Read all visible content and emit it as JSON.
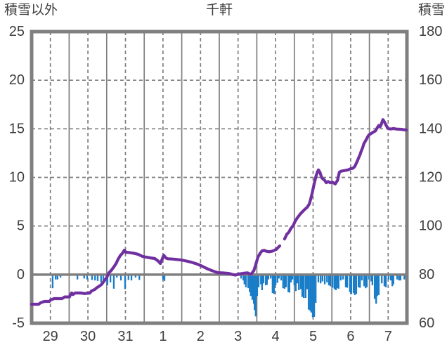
{
  "chart_data": {
    "type": "line+bar",
    "title": "千軒",
    "left_axis": {
      "label": "積雪以外",
      "min": -5,
      "max": 25,
      "ticks": [
        25,
        20,
        15,
        10,
        5,
        0,
        -5
      ]
    },
    "right_axis": {
      "label": "積雪",
      "min": 60,
      "max": 180,
      "ticks": [
        180,
        160,
        140,
        120,
        100,
        80,
        60
      ]
    },
    "x_axis": {
      "tick_labels": [
        "29",
        "30",
        "31",
        "1",
        "2",
        "3",
        "4",
        "5",
        "6",
        "7"
      ],
      "days": 10,
      "solid_gridlines": "day boundaries",
      "dashed_gridlines": "day centers"
    },
    "colors": {
      "line": "#7030A0",
      "bars": "#1A7DC8",
      "grid": "#7F7F7F",
      "frame": "#7F7F7F",
      "zero_line": "#7F7F7F",
      "text": "#3F3F3F"
    },
    "legend_position": "none",
    "grid": true,
    "note_units": "series values are in left-axis units; left 0 aligns with right 80 (right = left*4 + 80); line has a data gap near day 4.2",
    "series": [
      {
        "name": "積雪",
        "type": "line",
        "color": "#7030A0",
        "axis": "right",
        "segments": [
          [
            [
              0.0,
              -3.05
            ],
            [
              0.19,
              -3.05
            ],
            [
              0.24,
              -2.9
            ],
            [
              0.34,
              -2.76
            ],
            [
              0.47,
              -2.76
            ],
            [
              0.51,
              -2.6
            ],
            [
              0.6,
              -2.47
            ],
            [
              0.81,
              -2.47
            ],
            [
              0.88,
              -2.3
            ],
            [
              1.01,
              -2.3
            ],
            [
              1.03,
              -2.1
            ],
            [
              1.07,
              -1.89
            ],
            [
              1.1,
              -2.06
            ],
            [
              1.16,
              -1.89
            ],
            [
              1.31,
              -1.89
            ],
            [
              1.4,
              -1.95
            ],
            [
              1.55,
              -1.9
            ],
            [
              1.59,
              -1.7
            ],
            [
              1.69,
              -1.51
            ],
            [
              1.74,
              -1.34
            ],
            [
              1.82,
              -1.15
            ],
            [
              1.87,
              -0.98
            ],
            [
              1.93,
              -0.66
            ],
            [
              2.0,
              -0.3
            ],
            [
              2.06,
              0.18
            ],
            [
              2.12,
              0.42
            ],
            [
              2.19,
              0.78
            ],
            [
              2.25,
              1.14
            ],
            [
              2.3,
              1.55
            ],
            [
              2.36,
              1.95
            ],
            [
              2.42,
              2.2
            ],
            [
              2.47,
              2.51
            ],
            [
              2.51,
              2.3
            ],
            [
              2.58,
              2.28
            ],
            [
              2.72,
              2.2
            ],
            [
              2.83,
              2.1
            ],
            [
              2.96,
              1.86
            ],
            [
              3.05,
              1.8
            ],
            [
              3.16,
              1.72
            ],
            [
              3.28,
              1.65
            ],
            [
              3.37,
              1.4
            ],
            [
              3.43,
              1.14
            ],
            [
              3.48,
              1.6
            ],
            [
              3.52,
              1.99
            ],
            [
              3.58,
              1.7
            ],
            [
              3.63,
              1.63
            ],
            [
              3.75,
              1.6
            ],
            [
              3.88,
              1.55
            ],
            [
              3.99,
              1.5
            ],
            [
              4.12,
              1.4
            ],
            [
              4.25,
              1.28
            ],
            [
              4.4,
              1.1
            ],
            [
              4.55,
              0.85
            ],
            [
              4.68,
              0.6
            ],
            [
              4.81,
              0.4
            ],
            [
              4.96,
              0.2
            ],
            [
              5.11,
              0.17
            ],
            [
              5.26,
              0.12
            ],
            [
              5.36,
              0.0
            ],
            [
              5.43,
              -0.05
            ],
            [
              5.52,
              0.05
            ],
            [
              5.66,
              0.15
            ],
            [
              5.75,
              0.18
            ],
            [
              5.82,
              0.05
            ],
            [
              5.86,
              0.1
            ],
            [
              5.92,
              0.4
            ],
            [
              5.97,
              1.0
            ],
            [
              6.03,
              1.8
            ],
            [
              6.09,
              2.2
            ],
            [
              6.14,
              2.45
            ],
            [
              6.2,
              2.5
            ],
            [
              6.25,
              2.4
            ],
            [
              6.33,
              2.35
            ],
            [
              6.42,
              2.42
            ],
            [
              6.52,
              2.6
            ],
            [
              6.57,
              2.8
            ],
            [
              6.61,
              2.95
            ]
          ],
          [
            [
              6.74,
              3.67
            ],
            [
              6.8,
              4.15
            ],
            [
              6.85,
              4.35
            ],
            [
              6.91,
              4.75
            ],
            [
              6.97,
              5.05
            ],
            [
              7.02,
              5.48
            ],
            [
              7.08,
              5.84
            ],
            [
              7.15,
              6.2
            ],
            [
              7.21,
              6.44
            ],
            [
              7.27,
              6.68
            ],
            [
              7.34,
              6.92
            ],
            [
              7.4,
              7.28
            ],
            [
              7.43,
              7.7
            ],
            [
              7.47,
              8.3
            ],
            [
              7.51,
              9.0
            ],
            [
              7.55,
              9.7
            ],
            [
              7.58,
              10.18
            ],
            [
              7.62,
              10.6
            ],
            [
              7.64,
              10.77
            ],
            [
              7.68,
              10.55
            ],
            [
              7.73,
              9.95
            ],
            [
              7.81,
              9.69
            ],
            [
              7.85,
              9.45
            ],
            [
              7.9,
              9.57
            ],
            [
              7.96,
              9.45
            ],
            [
              8.01,
              9.52
            ],
            [
              8.09,
              9.33
            ],
            [
              8.15,
              9.69
            ],
            [
              8.2,
              10.54
            ],
            [
              8.26,
              10.66
            ],
            [
              8.33,
              10.7
            ],
            [
              8.43,
              10.77
            ],
            [
              8.5,
              10.9
            ],
            [
              8.56,
              10.94
            ],
            [
              8.61,
              11.13
            ],
            [
              8.67,
              11.62
            ],
            [
              8.71,
              11.98
            ],
            [
              8.75,
              12.34
            ],
            [
              8.78,
              12.7
            ],
            [
              8.82,
              13.06
            ],
            [
              8.85,
              13.45
            ],
            [
              8.9,
              13.79
            ],
            [
              8.95,
              14.15
            ],
            [
              8.99,
              14.39
            ],
            [
              9.04,
              14.5
            ],
            [
              9.1,
              14.65
            ],
            [
              9.16,
              14.78
            ],
            [
              9.21,
              15.11
            ],
            [
              9.25,
              15.35
            ],
            [
              9.29,
              15.23
            ],
            [
              9.32,
              15.5
            ],
            [
              9.36,
              15.95
            ],
            [
              9.4,
              15.71
            ],
            [
              9.44,
              15.4
            ],
            [
              9.47,
              15.2
            ],
            [
              9.51,
              15.0
            ],
            [
              9.59,
              14.99
            ],
            [
              9.64,
              15.03
            ],
            [
              9.72,
              14.97
            ],
            [
              9.83,
              14.95
            ],
            [
              9.98,
              14.87
            ]
          ]
        ]
      },
      {
        "name": "積雪以外",
        "type": "bar",
        "color": "#1A7DC8",
        "axis": "left",
        "points": [
          [
            0.56,
            -1.4
          ],
          [
            0.64,
            -0.5
          ],
          [
            0.69,
            -0.5
          ],
          [
            0.77,
            -0.3
          ],
          [
            1.22,
            -0.5
          ],
          [
            1.4,
            -0.4
          ],
          [
            1.48,
            -0.5
          ],
          [
            1.61,
            -0.55
          ],
          [
            1.69,
            -0.6
          ],
          [
            1.76,
            -0.65
          ],
          [
            1.85,
            -0.8
          ],
          [
            1.91,
            -0.85
          ],
          [
            2.02,
            -1.1
          ],
          [
            2.1,
            -0.8
          ],
          [
            2.19,
            -1.45
          ],
          [
            2.27,
            -0.3
          ],
          [
            2.38,
            -0.6
          ],
          [
            2.49,
            -1.5
          ],
          [
            2.58,
            -0.55
          ],
          [
            2.66,
            -0.6
          ],
          [
            2.77,
            -0.3
          ],
          [
            2.87,
            -0.55
          ],
          [
            3.5,
            -0.5
          ],
          [
            3.54,
            -0.65
          ],
          [
            5.58,
            -0.4
          ],
          [
            5.64,
            -0.6
          ],
          [
            5.67,
            -1.0
          ],
          [
            5.71,
            -1.3
          ],
          [
            5.77,
            -1.4
          ],
          [
            5.81,
            -1.8
          ],
          [
            5.84,
            -2.2
          ],
          [
            5.88,
            -2.6
          ],
          [
            5.92,
            -3.0
          ],
          [
            5.94,
            -3.65
          ],
          [
            5.97,
            -4.3
          ],
          [
            6.01,
            -2.2
          ],
          [
            6.05,
            -1.3
          ],
          [
            6.11,
            -1.0
          ],
          [
            6.14,
            -1.6
          ],
          [
            6.18,
            -0.9
          ],
          [
            6.24,
            -1.1
          ],
          [
            6.27,
            -1.05
          ],
          [
            6.31,
            -0.5
          ],
          [
            6.37,
            -0.4
          ],
          [
            6.42,
            -1.9
          ],
          [
            6.46,
            -2.0
          ],
          [
            6.5,
            -1.1
          ],
          [
            6.55,
            -0.85
          ],
          [
            6.59,
            -0.4
          ],
          [
            6.65,
            -0.6
          ],
          [
            6.7,
            -1.4
          ],
          [
            6.74,
            -1.45
          ],
          [
            6.78,
            -1.3
          ],
          [
            6.84,
            -1.8
          ],
          [
            6.87,
            -1.85
          ],
          [
            6.91,
            -0.8
          ],
          [
            6.95,
            -0.5
          ],
          [
            7.0,
            -1.1
          ],
          [
            7.04,
            -1.7
          ],
          [
            7.08,
            -0.9
          ],
          [
            7.12,
            -1.6
          ],
          [
            7.17,
            -1.5
          ],
          [
            7.21,
            -2.3
          ],
          [
            7.25,
            -2.4
          ],
          [
            7.3,
            -2.4
          ],
          [
            7.34,
            -1.5
          ],
          [
            7.38,
            -3.6
          ],
          [
            7.42,
            -3.7
          ],
          [
            7.45,
            -3.9
          ],
          [
            7.49,
            -4.4
          ],
          [
            7.53,
            -4.35
          ],
          [
            7.57,
            -2.9
          ],
          [
            7.64,
            -0.8
          ],
          [
            7.7,
            -0.9
          ],
          [
            7.75,
            -0.7
          ],
          [
            7.81,
            -1.0
          ],
          [
            7.87,
            -0.8
          ],
          [
            7.92,
            -1.1
          ],
          [
            7.96,
            -1.2
          ],
          [
            8.02,
            -1.35
          ],
          [
            8.07,
            -1.5
          ],
          [
            8.11,
            -1.6
          ],
          [
            8.15,
            -1.4
          ],
          [
            8.18,
            -1.45
          ],
          [
            8.24,
            -0.6
          ],
          [
            8.3,
            -0.5
          ],
          [
            8.37,
            -1.3
          ],
          [
            8.41,
            -1.35
          ],
          [
            8.48,
            -1.8
          ],
          [
            8.52,
            -2.0
          ],
          [
            8.58,
            -1.9
          ],
          [
            8.61,
            -2.1
          ],
          [
            8.65,
            -2.0
          ],
          [
            8.71,
            -1.3
          ],
          [
            8.75,
            -1.35
          ],
          [
            8.8,
            -0.6
          ],
          [
            8.86,
            -1.2
          ],
          [
            8.9,
            -1.4
          ],
          [
            8.93,
            -1.3
          ],
          [
            8.99,
            -0.5
          ],
          [
            9.05,
            -0.7
          ],
          [
            9.08,
            -1.1
          ],
          [
            9.14,
            -2.5
          ],
          [
            9.18,
            -3.0
          ],
          [
            9.21,
            -2.2
          ],
          [
            9.25,
            -2.1
          ],
          [
            9.33,
            -0.9
          ],
          [
            9.4,
            -1.2
          ],
          [
            9.44,
            -1.3
          ],
          [
            9.51,
            -0.5
          ],
          [
            9.57,
            -0.6
          ],
          [
            9.61,
            -1.2
          ],
          [
            9.64,
            -1.0
          ],
          [
            9.74,
            -0.5
          ],
          [
            9.79,
            -0.6
          ],
          [
            9.83,
            -0.6
          ],
          [
            9.93,
            -0.5
          ]
        ]
      }
    ]
  }
}
